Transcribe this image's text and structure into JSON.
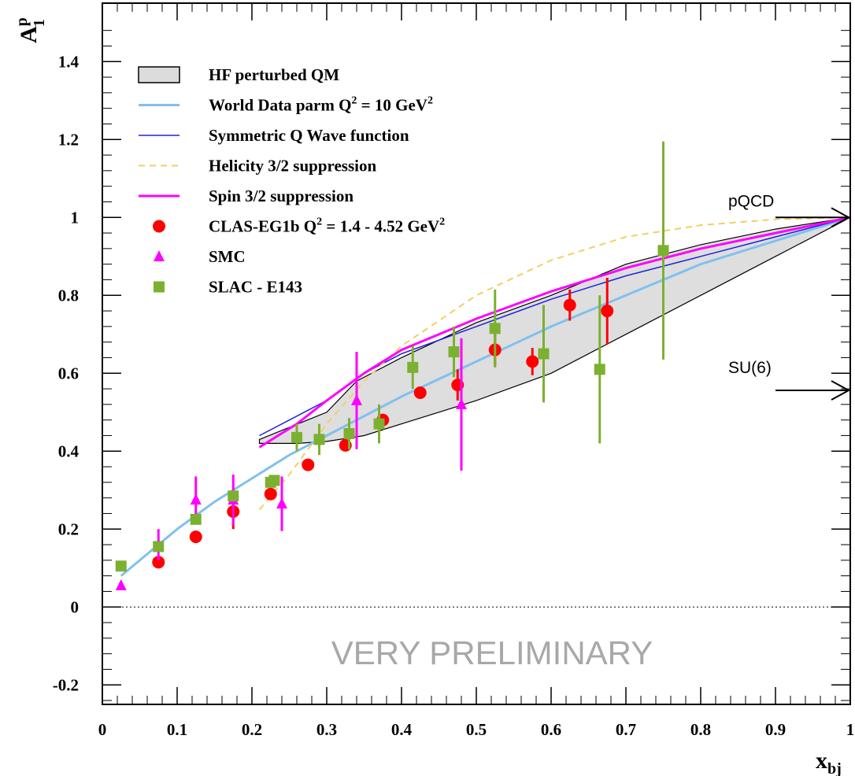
{
  "chart_data": {
    "type": "scatter",
    "xlabel": "x",
    "xlabel_sub": "bj",
    "ylabel": "A",
    "ylabel_sup": "p",
    "ylabel_sub": "1",
    "xlim": [
      0,
      1
    ],
    "ylim": [
      -0.25,
      1.55
    ],
    "x_ticks": [
      {
        "value": 0,
        "label": "0"
      },
      {
        "value": 0.1,
        "label": "0.1"
      },
      {
        "value": 0.2,
        "label": "0.2"
      },
      {
        "value": 0.3,
        "label": "0.3"
      },
      {
        "value": 0.4,
        "label": "0.4"
      },
      {
        "value": 0.5,
        "label": "0.5"
      },
      {
        "value": 0.6,
        "label": "0.6"
      },
      {
        "value": 0.7,
        "label": "0.7"
      },
      {
        "value": 0.8,
        "label": "0.8"
      },
      {
        "value": 0.9,
        "label": "0.9"
      },
      {
        "value": 1,
        "label": "1"
      }
    ],
    "y_ticks": [
      {
        "value": -0.2,
        "label": "-0.2"
      },
      {
        "value": 0,
        "label": "0"
      },
      {
        "value": 0.2,
        "label": "0.2"
      },
      {
        "value": 0.4,
        "label": "0.4"
      },
      {
        "value": 0.6,
        "label": "0.6"
      },
      {
        "value": 0.8,
        "label": "0.8"
      },
      {
        "value": 1,
        "label": "1"
      },
      {
        "value": 1.2,
        "label": "1.2"
      },
      {
        "value": 1.4,
        "label": "1.4"
      }
    ],
    "legend_position": "top-left",
    "legend": [
      {
        "label": "HF perturbed QM",
        "sup": "",
        "marker": "band",
        "color": "#dcdcdc"
      },
      {
        "label": "World Data parm Q",
        "sup": "2",
        "tail": " = 10 GeV",
        "sup2": "2",
        "marker": "line",
        "color": "#80c0f0"
      },
      {
        "label": "Symmetric Q Wave function",
        "sup": "",
        "marker": "line",
        "color": "#2020e0"
      },
      {
        "label": "Helicity 3/2 suppression",
        "sup": "",
        "marker": "dashed",
        "color": "#f0d060"
      },
      {
        "label": "Spin 3/2 suppression",
        "sup": "",
        "marker": "line",
        "color": "#ff00ff"
      },
      {
        "label": "CLAS-EG1b Q",
        "sup": "2",
        "tail": " = 1.4 - 4.52 GeV",
        "sup2": "2",
        "marker": "circle",
        "color": "#ff0000"
      },
      {
        "label": "SMC",
        "sup": "",
        "marker": "triangle",
        "color": "#ff00ff"
      },
      {
        "label": "SLAC - E143",
        "sup": "",
        "marker": "square",
        "color": "#7cb030"
      }
    ],
    "band": {
      "name": "HF perturbed QM",
      "upper": [
        [
          0.21,
          0.43
        ],
        [
          0.3,
          0.5
        ],
        [
          0.34,
          0.58
        ],
        [
          0.4,
          0.64
        ],
        [
          0.5,
          0.73
        ],
        [
          0.6,
          0.8
        ],
        [
          0.7,
          0.88
        ],
        [
          0.8,
          0.93
        ],
        [
          0.9,
          0.97
        ],
        [
          1.0,
          1.0
        ]
      ],
      "lower": [
        [
          0.21,
          0.42
        ],
        [
          0.26,
          0.42
        ],
        [
          0.3,
          0.425
        ],
        [
          0.35,
          0.44
        ],
        [
          0.4,
          0.47
        ],
        [
          0.5,
          0.53
        ],
        [
          0.6,
          0.6
        ],
        [
          0.7,
          0.7
        ],
        [
          0.8,
          0.8
        ],
        [
          0.9,
          0.9
        ],
        [
          1.0,
          1.0
        ]
      ]
    },
    "curves": [
      {
        "name": "World Data parm",
        "color": "#80c0f0",
        "width": 3,
        "dash": "",
        "points": [
          [
            0.025,
            0.08
          ],
          [
            0.05,
            0.12
          ],
          [
            0.1,
            0.2
          ],
          [
            0.15,
            0.27
          ],
          [
            0.2,
            0.33
          ],
          [
            0.25,
            0.39
          ],
          [
            0.3,
            0.44
          ],
          [
            0.35,
            0.49
          ],
          [
            0.4,
            0.54
          ],
          [
            0.5,
            0.63
          ],
          [
            0.6,
            0.72
          ],
          [
            0.7,
            0.8
          ],
          [
            0.8,
            0.88
          ],
          [
            0.9,
            0.94
          ],
          [
            1.0,
            1.0
          ]
        ]
      },
      {
        "name": "Symmetric Q Wave function",
        "color": "#2020e0",
        "width": 1.5,
        "dash": "",
        "points": [
          [
            0.21,
            0.44
          ],
          [
            0.3,
            0.53
          ],
          [
            0.35,
            0.6
          ],
          [
            0.4,
            0.65
          ],
          [
            0.5,
            0.72
          ],
          [
            0.6,
            0.79
          ],
          [
            0.7,
            0.85
          ],
          [
            0.8,
            0.9
          ],
          [
            0.9,
            0.95
          ],
          [
            1.0,
            1.0
          ]
        ]
      },
      {
        "name": "Helicity 3/2 suppression",
        "color": "#f0d060",
        "width": 2,
        "dash": "8,6",
        "points": [
          [
            0.21,
            0.25
          ],
          [
            0.25,
            0.34
          ],
          [
            0.3,
            0.47
          ],
          [
            0.35,
            0.58
          ],
          [
            0.4,
            0.67
          ],
          [
            0.5,
            0.8
          ],
          [
            0.6,
            0.89
          ],
          [
            0.7,
            0.95
          ],
          [
            0.8,
            0.98
          ],
          [
            0.9,
            0.995
          ],
          [
            1.0,
            1.0
          ]
        ]
      },
      {
        "name": "Spin 3/2 suppression",
        "color": "#ff00ff",
        "width": 3,
        "dash": "",
        "points": [
          [
            0.21,
            0.41
          ],
          [
            0.26,
            0.47
          ],
          [
            0.3,
            0.53
          ],
          [
            0.35,
            0.6
          ],
          [
            0.4,
            0.66
          ],
          [
            0.5,
            0.74
          ],
          [
            0.6,
            0.81
          ],
          [
            0.7,
            0.87
          ],
          [
            0.8,
            0.92
          ],
          [
            0.9,
            0.96
          ],
          [
            1.0,
            1.0
          ]
        ]
      }
    ],
    "series": [
      {
        "name": "CLAS-EG1b",
        "marker": "circle",
        "color": "#ff0000",
        "points": [
          {
            "x": 0.075,
            "y": 0.115,
            "err": 0
          },
          {
            "x": 0.125,
            "y": 0.18,
            "err": 0
          },
          {
            "x": 0.175,
            "y": 0.245,
            "err": 0.045
          },
          {
            "x": 0.225,
            "y": 0.29,
            "err": 0
          },
          {
            "x": 0.275,
            "y": 0.365,
            "err": 0
          },
          {
            "x": 0.325,
            "y": 0.415,
            "err": 0
          },
          {
            "x": 0.375,
            "y": 0.48,
            "err": 0
          },
          {
            "x": 0.425,
            "y": 0.55,
            "err": 0
          },
          {
            "x": 0.475,
            "y": 0.57,
            "err": 0.04
          },
          {
            "x": 0.525,
            "y": 0.66,
            "err": 0.04
          },
          {
            "x": 0.575,
            "y": 0.63,
            "err": 0.035
          },
          {
            "x": 0.625,
            "y": 0.775,
            "err": 0.04
          },
          {
            "x": 0.675,
            "y": 0.76,
            "err": 0.085
          }
        ]
      },
      {
        "name": "SMC",
        "marker": "triangle",
        "color": "#ff00ff",
        "points": [
          {
            "x": 0.025,
            "y": 0.055,
            "err": 0
          },
          {
            "x": 0.075,
            "y": 0.16,
            "err": 0.04
          },
          {
            "x": 0.125,
            "y": 0.275,
            "err": 0.06
          },
          {
            "x": 0.175,
            "y": 0.275,
            "err": 0.065
          },
          {
            "x": 0.24,
            "y": 0.265,
            "err": 0.07
          },
          {
            "x": 0.34,
            "y": 0.53,
            "err": 0.125
          },
          {
            "x": 0.48,
            "y": 0.52,
            "err": 0.17
          }
        ]
      },
      {
        "name": "SLAC - E143",
        "marker": "square",
        "color": "#7cb030",
        "points": [
          {
            "x": 0.025,
            "y": 0.105,
            "err": 0
          },
          {
            "x": 0.075,
            "y": 0.155,
            "err": 0
          },
          {
            "x": 0.125,
            "y": 0.225,
            "err": 0
          },
          {
            "x": 0.175,
            "y": 0.285,
            "err": 0
          },
          {
            "x": 0.225,
            "y": 0.32,
            "err": 0
          },
          {
            "x": 0.23,
            "y": 0.325,
            "err": 0
          },
          {
            "x": 0.26,
            "y": 0.435,
            "err": 0.035
          },
          {
            "x": 0.29,
            "y": 0.43,
            "err": 0.04
          },
          {
            "x": 0.33,
            "y": 0.445,
            "err": 0.04
          },
          {
            "x": 0.37,
            "y": 0.47,
            "err": 0.05
          },
          {
            "x": 0.415,
            "y": 0.615,
            "err": 0.055
          },
          {
            "x": 0.47,
            "y": 0.655,
            "err": 0.065
          },
          {
            "x": 0.525,
            "y": 0.715,
            "err": 0.1
          },
          {
            "x": 0.59,
            "y": 0.65,
            "err": 0.125
          },
          {
            "x": 0.665,
            "y": 0.61,
            "err": 0.19
          },
          {
            "x": 0.75,
            "y": 0.915,
            "err": 0.28
          }
        ]
      }
    ],
    "zero_line": true,
    "annotations": [
      {
        "text": "pQCD",
        "y": 1.0,
        "x_start": 0.9
      },
      {
        "text": "SU(6)",
        "y": 0.556,
        "x_start": 0.9
      }
    ],
    "watermark": "VERY PRELIMINARY"
  }
}
